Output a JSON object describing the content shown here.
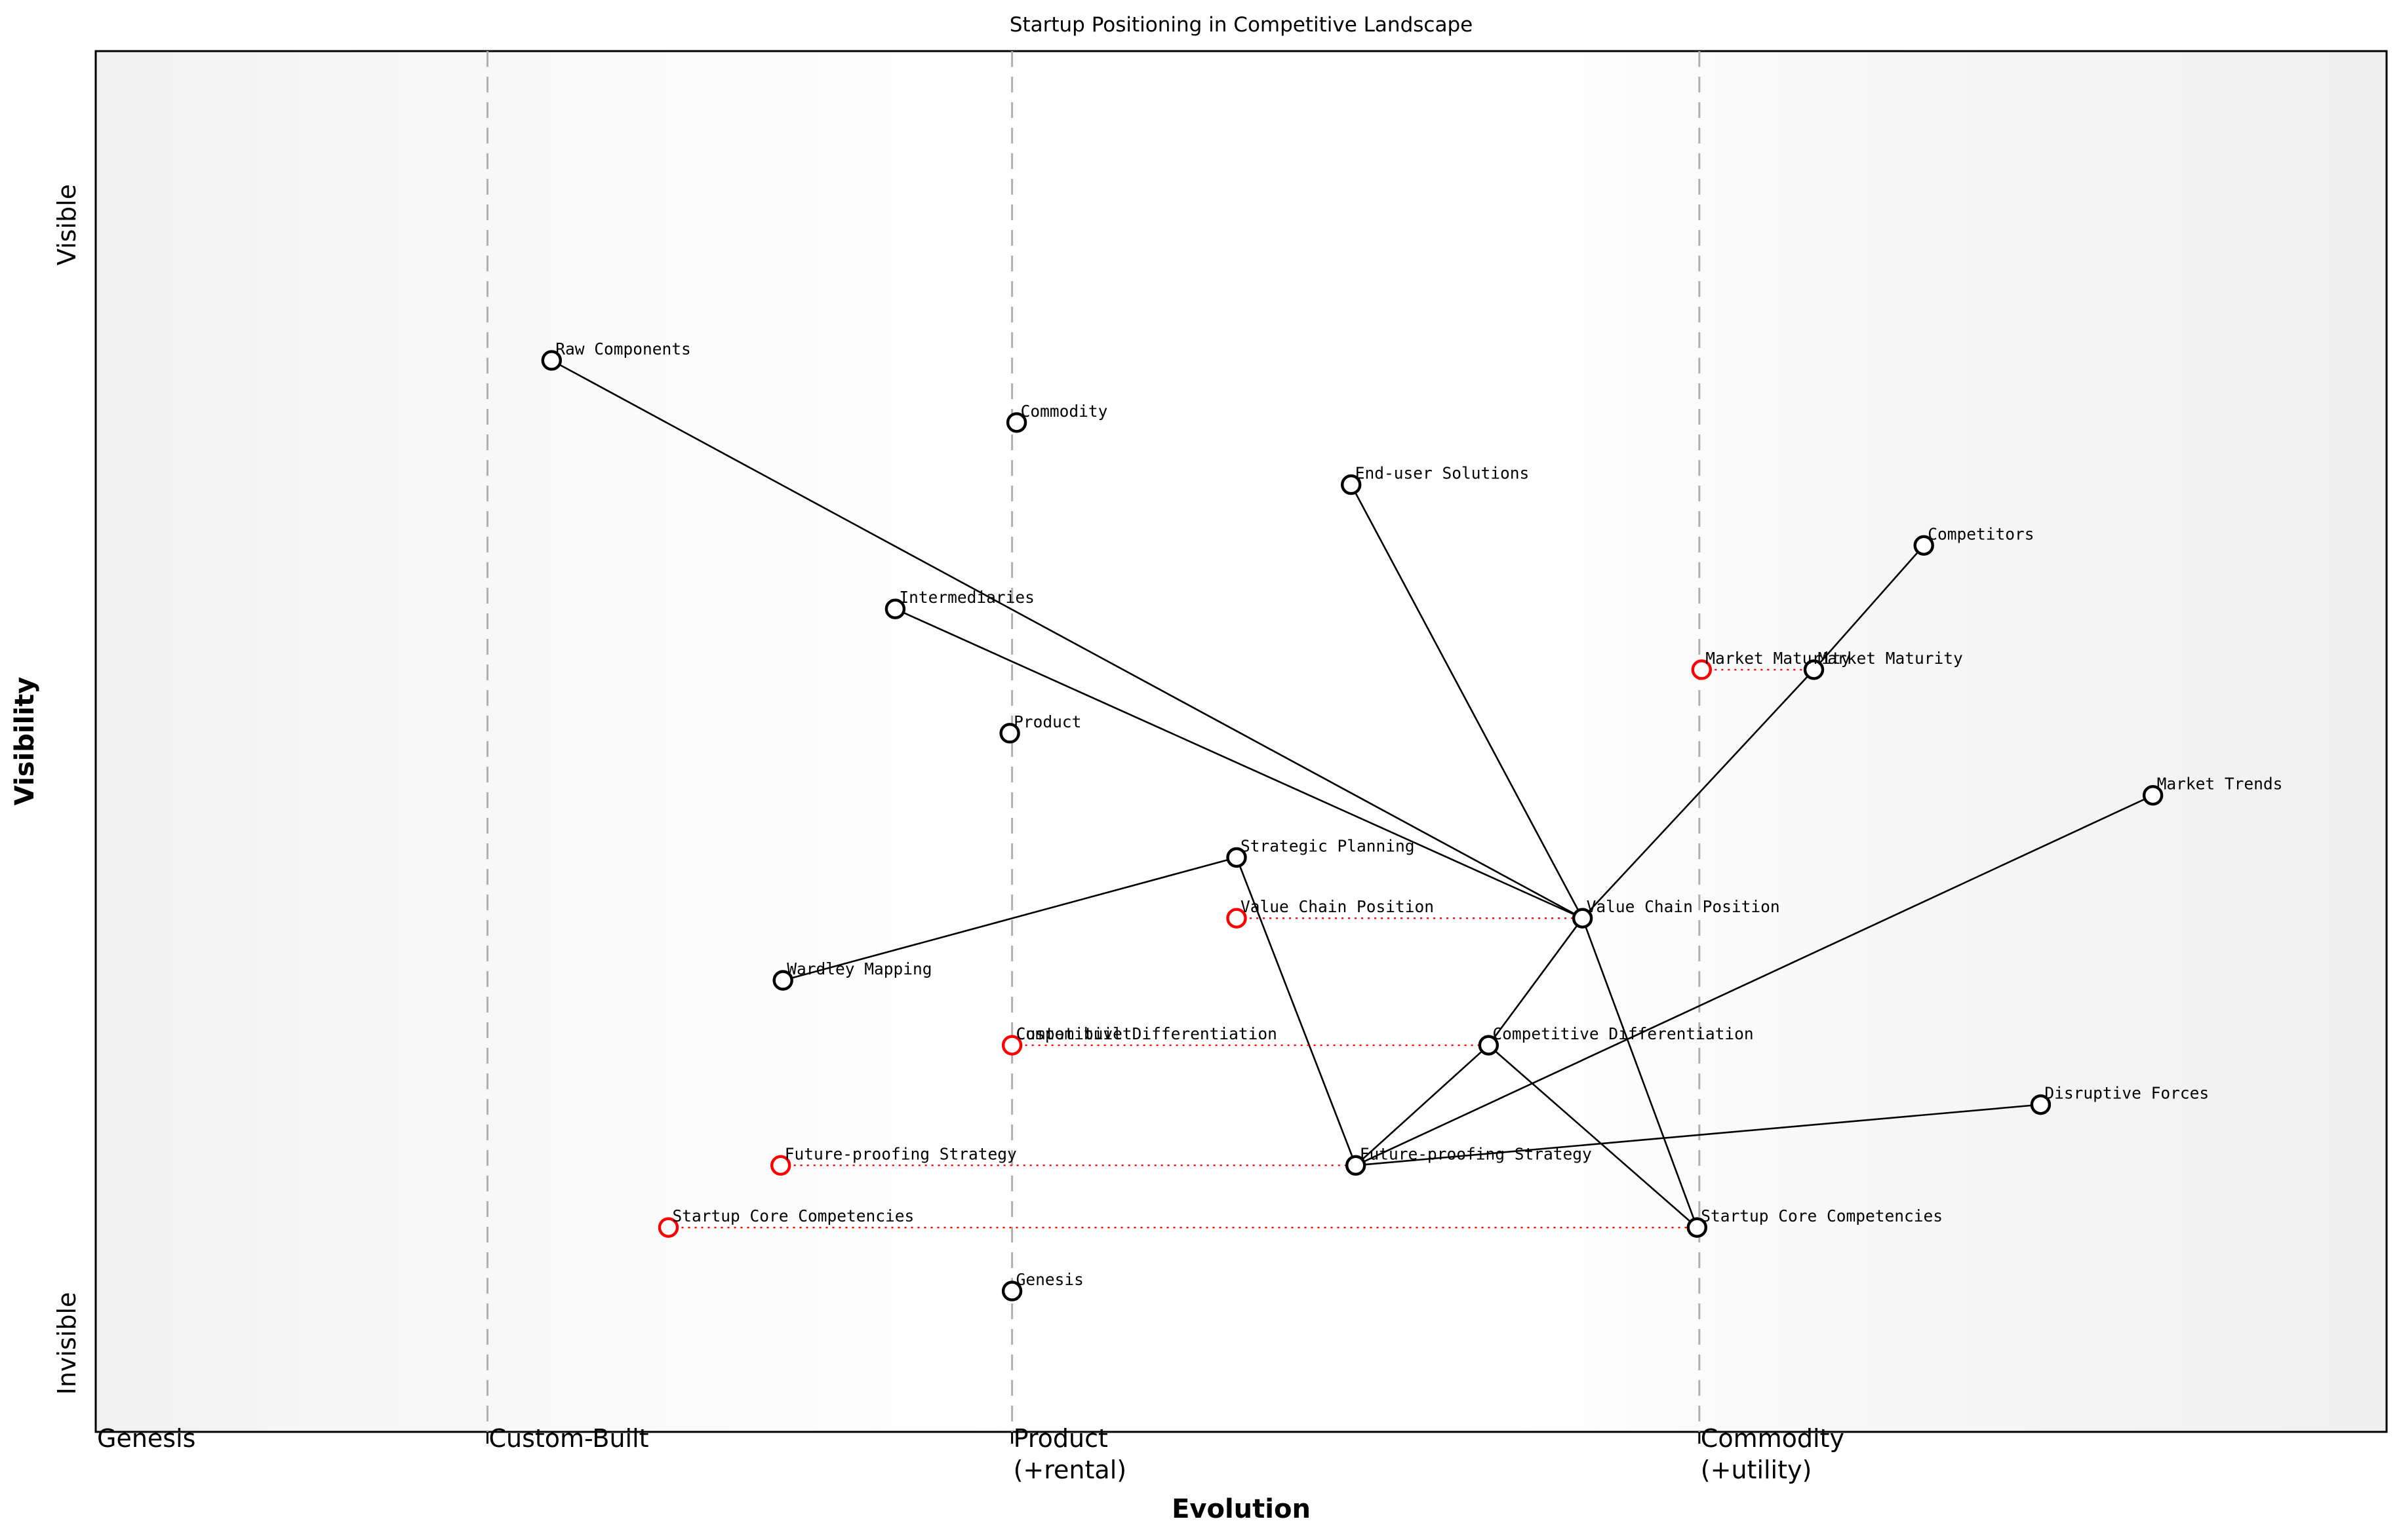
{
  "title": "Startup Positioning in Competitive Landscape",
  "colors": {
    "component": "#000000",
    "evolve": "#ff0000",
    "edge": "#000000",
    "gridline": "#b0b0b0",
    "border": "#000000",
    "plot_bg_edge": "#f1f1f1",
    "plot_bg_mid": "#ffffff",
    "label_text": "#000000"
  },
  "axes": {
    "x_label": "Evolution",
    "y_label": "Visibility",
    "x_stages": [
      {
        "label": "Genesis",
        "x": 0
      },
      {
        "label": "Custom-Built",
        "x": 0.171
      },
      {
        "label": "Product\n(+rental)",
        "x": 0.4
      },
      {
        "label": "Commodity\n(+utility)",
        "x": 0.7
      }
    ],
    "y_ticks": [
      {
        "label": "Invisible",
        "y": 0.064
      },
      {
        "label": "Visible",
        "y": 0.874
      }
    ]
  },
  "chart_data": {
    "type": "scatter",
    "title": "Startup Positioning in Competitive Landscape",
    "xlabel": "Evolution",
    "ylabel": "Visibility",
    "x_axis_stages": [
      "Genesis",
      "Custom-Built",
      "Product (+rental)",
      "Commodity (+utility)"
    ],
    "y_axis_range": [
      "Invisible",
      "Visible"
    ],
    "grid": "dashed vertical stage boundaries at evolution 0.171, 0.4 and 0.7",
    "components": [
      {
        "id": "raw_components",
        "label": "Raw Components",
        "evolution": 0.199,
        "visibility": 0.776
      },
      {
        "id": "commodity",
        "label": "Commodity",
        "evolution": 0.402,
        "visibility": 0.731
      },
      {
        "id": "end_user_solutions",
        "label": "End-user Solutions",
        "evolution": 0.548,
        "visibility": 0.686
      },
      {
        "id": "competitors",
        "label": "Competitors",
        "evolution": 0.798,
        "visibility": 0.642
      },
      {
        "id": "intermediaries",
        "label": "Intermediaries",
        "evolution": 0.349,
        "visibility": 0.596
      },
      {
        "id": "market_maturity",
        "label": "Market Maturity",
        "evolution": 0.75,
        "visibility": 0.552
      },
      {
        "id": "product",
        "label": "Product",
        "evolution": 0.399,
        "visibility": 0.506
      },
      {
        "id": "market_trends",
        "label": "Market Trends",
        "evolution": 0.898,
        "visibility": 0.461
      },
      {
        "id": "strategic_planning",
        "label": "Strategic Planning",
        "evolution": 0.498,
        "visibility": 0.416
      },
      {
        "id": "value_chain_position",
        "label": "Value Chain Position",
        "evolution": 0.649,
        "visibility": 0.372
      },
      {
        "id": "wardley_mapping",
        "label": "Wardley Mapping",
        "evolution": 0.3,
        "visibility": 0.327
      },
      {
        "id": "competitive_differentiation",
        "label": "Competitive Differentiation",
        "evolution": 0.608,
        "visibility": 0.28
      },
      {
        "id": "disruptive_forces",
        "label": "Disruptive Forces",
        "evolution": 0.849,
        "visibility": 0.237
      },
      {
        "id": "future_proofing_strategy",
        "label": "Future-proofing Strategy",
        "evolution": 0.55,
        "visibility": 0.193
      },
      {
        "id": "startup_core_competencies",
        "label": "Startup Core Competencies",
        "evolution": 0.699,
        "visibility": 0.148
      },
      {
        "id": "genesis",
        "label": "Genesis",
        "evolution": 0.4,
        "visibility": 0.102
      }
    ],
    "edges": [
      [
        "raw_components",
        "value_chain_position"
      ],
      [
        "intermediaries",
        "value_chain_position"
      ],
      [
        "end_user_solutions",
        "value_chain_position"
      ],
      [
        "value_chain_position",
        "market_maturity"
      ],
      [
        "market_maturity",
        "competitors"
      ],
      [
        "value_chain_position",
        "competitive_differentiation"
      ],
      [
        "value_chain_position",
        "startup_core_competencies"
      ],
      [
        "competitive_differentiation",
        "startup_core_competencies"
      ],
      [
        "competitive_differentiation",
        "future_proofing_strategy"
      ],
      [
        "strategic_planning",
        "future_proofing_strategy"
      ],
      [
        "strategic_planning",
        "wardley_mapping"
      ],
      [
        "future_proofing_strategy",
        "market_trends"
      ],
      [
        "future_proofing_strategy",
        "disruptive_forces"
      ]
    ],
    "evolutions": [
      {
        "component": "market_maturity",
        "from_evolution": 0.701
      },
      {
        "component": "value_chain_position",
        "from_evolution": 0.498
      },
      {
        "component": "competitive_differentiation",
        "from_evolution": 0.4
      },
      {
        "component": "future_proofing_strategy",
        "from_evolution": 0.299
      },
      {
        "component": "startup_core_competencies",
        "from_evolution": 0.25
      }
    ],
    "notes": [
      {
        "text": "Custom built",
        "evolution": 0.4,
        "visibility": 0.28
      }
    ]
  }
}
